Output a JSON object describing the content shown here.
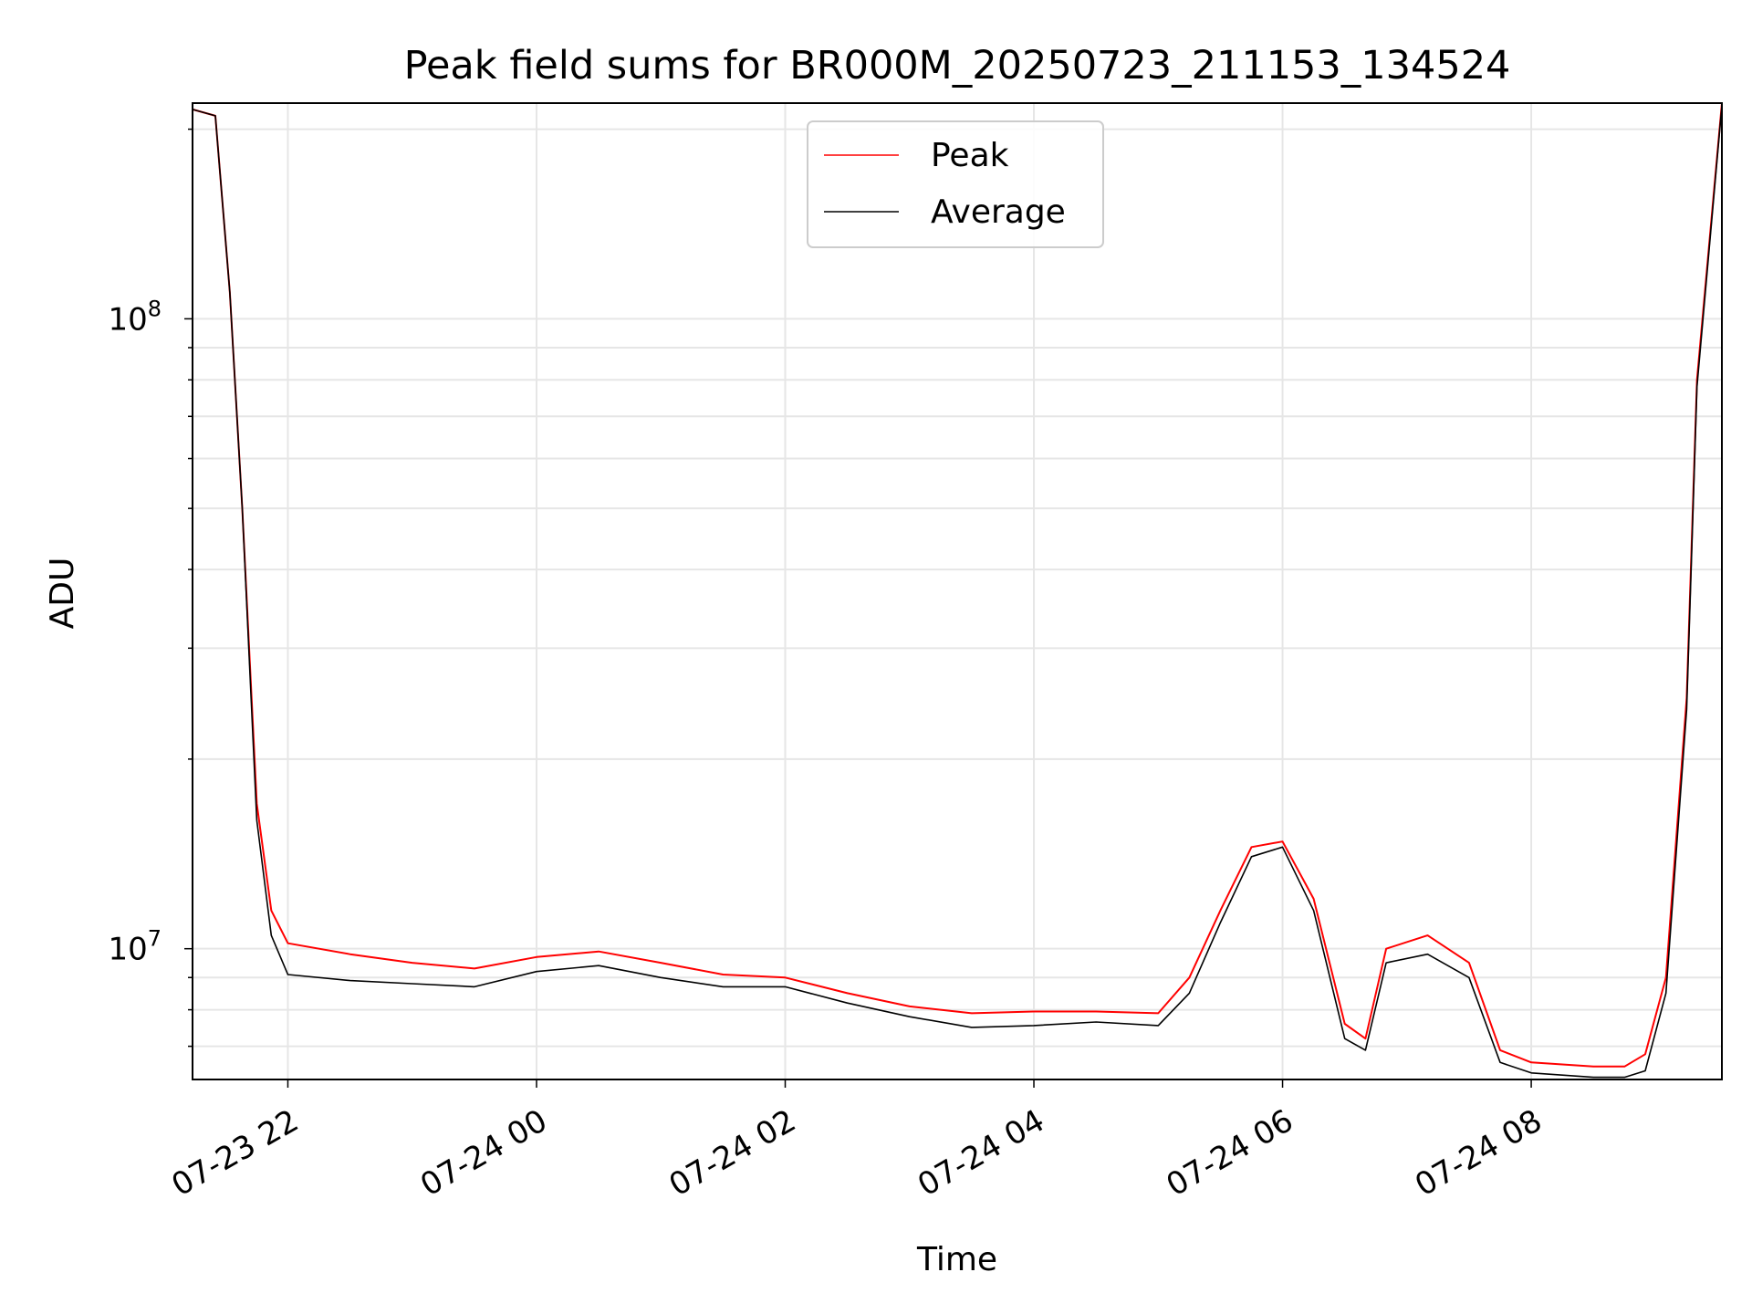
{
  "chart_data": {
    "type": "line",
    "title": "Peak field sums for BR000M_20250723_211153_134524",
    "xlabel": "Time",
    "ylabel": "ADU",
    "yscale": "log",
    "grid": true,
    "legend_placement": "top-center",
    "x_tick_labels": [
      "07-23 22",
      "07-24 00",
      "07-24 02",
      "07-24 04",
      "07-24 06",
      "07-24 08"
    ],
    "y_tick_labels": [
      {
        "base": "10",
        "exp": "7"
      },
      {
        "base": "10",
        "exp": "8"
      }
    ],
    "xlim": [
      "2025-07-23 21:14",
      "2025-07-24 09:32"
    ],
    "ylim": [
      6200000,
      220000000
    ],
    "series": [
      {
        "name": "Peak",
        "color": "#ff0000",
        "x": [
          "2025-07-23 21:14",
          "2025-07-23 21:25",
          "2025-07-23 21:32",
          "2025-07-23 21:38",
          "2025-07-23 21:45",
          "2025-07-23 21:52",
          "2025-07-23 22:00",
          "2025-07-23 22:30",
          "2025-07-23 23:00",
          "2025-07-23 23:30",
          "2025-07-24 00:00",
          "2025-07-24 00:30",
          "2025-07-24 01:00",
          "2025-07-24 01:30",
          "2025-07-24 02:00",
          "2025-07-24 02:30",
          "2025-07-24 03:00",
          "2025-07-24 03:30",
          "2025-07-24 04:00",
          "2025-07-24 04:30",
          "2025-07-24 05:00",
          "2025-07-24 05:15",
          "2025-07-24 05:30",
          "2025-07-24 05:45",
          "2025-07-24 06:00",
          "2025-07-24 06:15",
          "2025-07-24 06:30",
          "2025-07-24 06:40",
          "2025-07-24 06:50",
          "2025-07-24 07:10",
          "2025-07-24 07:30",
          "2025-07-24 07:45",
          "2025-07-24 08:00",
          "2025-07-24 08:30",
          "2025-07-24 08:45",
          "2025-07-24 08:55",
          "2025-07-24 09:05",
          "2025-07-24 09:15",
          "2025-07-24 09:20",
          "2025-07-24 09:32"
        ],
        "y": [
          215000000,
          210000000,
          110000000,
          50000000,
          17000000,
          11500000,
          10200000,
          9800000,
          9500000,
          9300000,
          9700000,
          9900000,
          9500000,
          9100000,
          9000000,
          8500000,
          8100000,
          7900000,
          7950000,
          7950000,
          7900000,
          9000000,
          11500000,
          14500000,
          14800000,
          12000000,
          7600000,
          7200000,
          10000000,
          10500000,
          9500000,
          6900000,
          6600000,
          6500000,
          6500000,
          6800000,
          9000000,
          25000000,
          80000000,
          220000000
        ]
      },
      {
        "name": "Average",
        "color": "#000000",
        "x": [
          "2025-07-23 21:14",
          "2025-07-23 21:25",
          "2025-07-23 21:32",
          "2025-07-23 21:38",
          "2025-07-23 21:45",
          "2025-07-23 21:52",
          "2025-07-23 22:00",
          "2025-07-23 22:30",
          "2025-07-23 23:00",
          "2025-07-23 23:30",
          "2025-07-24 00:00",
          "2025-07-24 00:30",
          "2025-07-24 01:00",
          "2025-07-24 01:30",
          "2025-07-24 02:00",
          "2025-07-24 02:30",
          "2025-07-24 03:00",
          "2025-07-24 03:30",
          "2025-07-24 04:00",
          "2025-07-24 04:30",
          "2025-07-24 05:00",
          "2025-07-24 05:15",
          "2025-07-24 05:30",
          "2025-07-24 05:45",
          "2025-07-24 06:00",
          "2025-07-24 06:15",
          "2025-07-24 06:30",
          "2025-07-24 06:40",
          "2025-07-24 06:50",
          "2025-07-24 07:10",
          "2025-07-24 07:30",
          "2025-07-24 07:45",
          "2025-07-24 08:00",
          "2025-07-24 08:30",
          "2025-07-24 08:45",
          "2025-07-24 08:55",
          "2025-07-24 09:05",
          "2025-07-24 09:15",
          "2025-07-24 09:20",
          "2025-07-24 09:32"
        ],
        "y": [
          215000000,
          210000000,
          110000000,
          50000000,
          16000000,
          10500000,
          9100000,
          8900000,
          8800000,
          8700000,
          9200000,
          9400000,
          9000000,
          8700000,
          8700000,
          8200000,
          7800000,
          7500000,
          7550000,
          7650000,
          7550000,
          8500000,
          11000000,
          14000000,
          14500000,
          11500000,
          7200000,
          6900000,
          9500000,
          9800000,
          9000000,
          6600000,
          6350000,
          6250000,
          6250000,
          6400000,
          8500000,
          24000000,
          78000000,
          218000000
        ]
      }
    ]
  }
}
